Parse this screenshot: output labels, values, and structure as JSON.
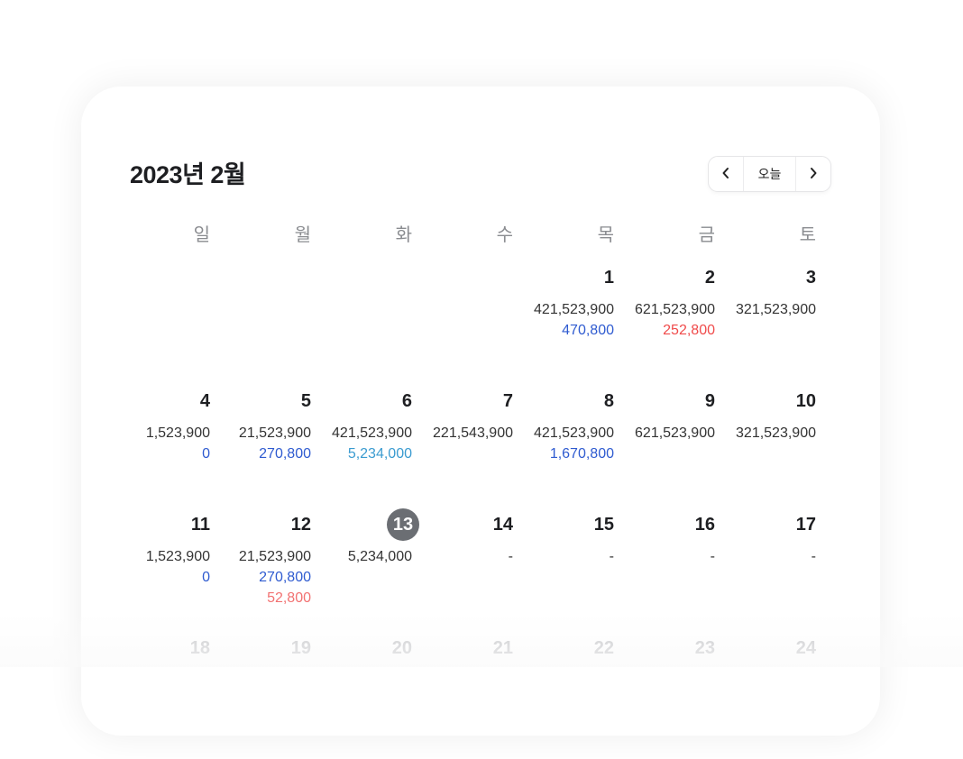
{
  "header": {
    "title": "2023년 2월",
    "prev_label": "‹",
    "today_label": "오늘",
    "next_label": "›"
  },
  "weekdays": [
    "일",
    "월",
    "화",
    "수",
    "목",
    "금",
    "토"
  ],
  "colors": {
    "income": "#2f5bd0",
    "expense": "#f04b4b",
    "today_circle": "#6b6e73"
  },
  "today": 13,
  "weeks": [
    [
      null,
      null,
      null,
      null,
      {
        "day": "1",
        "lines": [
          {
            "text": "421,523,900",
            "tone": ""
          },
          {
            "text": "470,800",
            "tone": "blue"
          }
        ]
      },
      {
        "day": "2",
        "lines": [
          {
            "text": "621,523,900",
            "tone": ""
          },
          {
            "text": "252,800",
            "tone": "red"
          }
        ]
      },
      {
        "day": "3",
        "lines": [
          {
            "text": "321,523,900",
            "tone": ""
          }
        ]
      }
    ],
    [
      {
        "day": "4",
        "lines": [
          {
            "text": "1,523,900",
            "tone": ""
          },
          {
            "text": "0",
            "tone": "blue"
          }
        ]
      },
      {
        "day": "5",
        "lines": [
          {
            "text": "21,523,900",
            "tone": ""
          },
          {
            "text": "270,800",
            "tone": "blue"
          }
        ]
      },
      {
        "day": "6",
        "lines": [
          {
            "text": "421,523,900",
            "tone": ""
          },
          {
            "text": "5,234,000",
            "tone": "teal"
          }
        ]
      },
      {
        "day": "7",
        "lines": [
          {
            "text": "221,543,900",
            "tone": ""
          }
        ]
      },
      {
        "day": "8",
        "lines": [
          {
            "text": "421,523,900",
            "tone": ""
          },
          {
            "text": "1,670,800",
            "tone": "blue"
          }
        ]
      },
      {
        "day": "9",
        "lines": [
          {
            "text": "621,523,900",
            "tone": ""
          }
        ]
      },
      {
        "day": "10",
        "lines": [
          {
            "text": "321,523,900",
            "tone": ""
          }
        ]
      }
    ],
    [
      {
        "day": "11",
        "lines": [
          {
            "text": "1,523,900",
            "tone": ""
          },
          {
            "text": "0",
            "tone": "blue"
          }
        ]
      },
      {
        "day": "12",
        "lines": [
          {
            "text": "21,523,900",
            "tone": ""
          },
          {
            "text": "270,800",
            "tone": "blue"
          },
          {
            "text": "52,800",
            "tone": "lred"
          }
        ]
      },
      {
        "day": "13",
        "lines": [
          {
            "text": "5,234,000",
            "tone": ""
          }
        ]
      },
      {
        "day": "14",
        "lines": [
          {
            "text": "-",
            "tone": ""
          }
        ]
      },
      {
        "day": "15",
        "lines": [
          {
            "text": "-",
            "tone": ""
          }
        ]
      },
      {
        "day": "16",
        "lines": [
          {
            "text": "-",
            "tone": ""
          }
        ]
      },
      {
        "day": "17",
        "lines": [
          {
            "text": "-",
            "tone": ""
          }
        ]
      }
    ],
    [
      {
        "day": "18",
        "lines": [],
        "faded": true
      },
      {
        "day": "19",
        "lines": [],
        "faded": true
      },
      {
        "day": "20",
        "lines": [],
        "faded": true
      },
      {
        "day": "21",
        "lines": [],
        "faded": true
      },
      {
        "day": "22",
        "lines": [],
        "faded": true
      },
      {
        "day": "23",
        "lines": [],
        "faded": true
      },
      {
        "day": "24",
        "lines": [],
        "faded": true
      }
    ]
  ]
}
